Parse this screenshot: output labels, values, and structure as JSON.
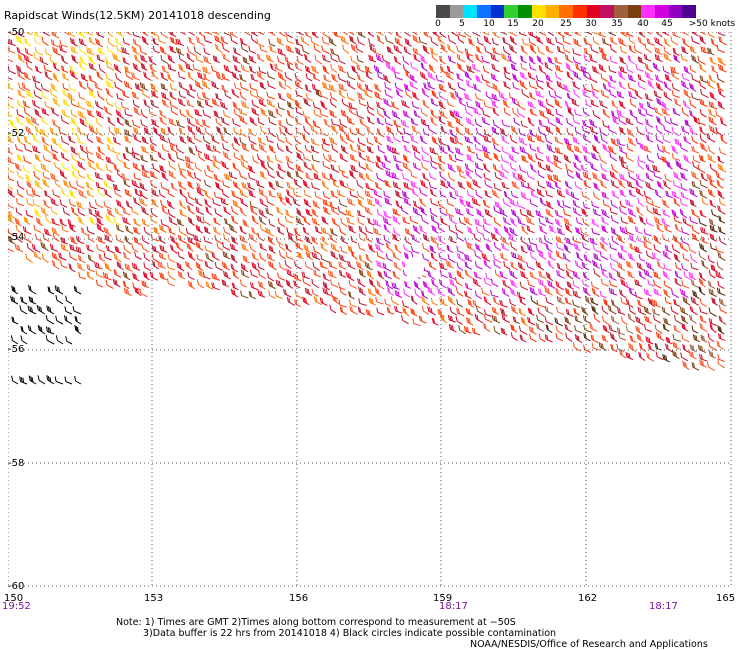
{
  "title": "Rapidscat Winds(12.5KM) 20141018 descending",
  "colorbar": {
    "colors": [
      "#4a4a4a",
      "#9a9a9a",
      "#00e0ff",
      "#1070ff",
      "#0030d0",
      "#30d030",
      "#009000",
      "#ffe000",
      "#ffb000",
      "#ff7000",
      "#ff3000",
      "#e00020",
      "#c01060",
      "#a06040",
      "#7a4010",
      "#ff30ff",
      "#d000e0",
      "#9000c0",
      "#500090"
    ],
    "labels": [
      "0",
      "5",
      "10",
      "15",
      "20",
      "25",
      "30",
      "35",
      "40",
      "45",
      ">50 knots"
    ]
  },
  "axes": {
    "lat_labels": [
      "-50",
      "-52",
      "-54",
      "-56",
      "-58",
      "-60"
    ],
    "lon_labels": [
      "150",
      "153",
      "156",
      "159",
      "162",
      "165"
    ]
  },
  "times": [
    "19:52",
    "18:17",
    "18:17"
  ],
  "notes": [
    "Note: 1) Times are GMT 2)Times along bottom correspond to measurement at −50S",
    "3)Data buffer is 22 hrs from 20141018 4) Black circles indicate possible contamination",
    "NOAA/NESDIS/Office of Research and Applications"
  ]
}
